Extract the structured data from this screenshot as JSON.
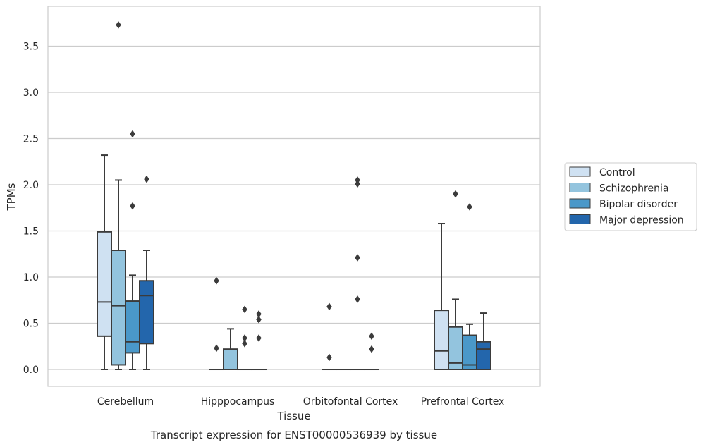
{
  "chart_data": {
    "type": "box",
    "title": "",
    "caption": "Transcript expression for ENST00000536939 by tissue",
    "xlabel": "Tissue",
    "ylabel": "TPMs",
    "ylim": [
      -0.18,
      3.9
    ],
    "yticks": [
      0.0,
      0.5,
      1.0,
      1.5,
      2.0,
      2.5,
      3.0,
      3.5
    ],
    "ytick_labels": [
      "0.0",
      "0.5",
      "1.0",
      "1.5",
      "2.0",
      "2.5",
      "3.0",
      "3.5"
    ],
    "grid": "horizontal",
    "legend_position": "right",
    "categories": [
      "Cerebellum",
      "Hipppocampus",
      "Orbitofontal Cortex",
      "Prefrontal Cortex"
    ],
    "series": [
      {
        "name": "Control",
        "color": "#cfe1f2",
        "boxes": [
          {
            "whisker_low": 0.0,
            "q1": 0.36,
            "median": 0.73,
            "q3": 1.49,
            "whisker_high": 2.32,
            "outliers": []
          },
          {
            "whisker_low": 0.0,
            "q1": 0.0,
            "median": 0.0,
            "q3": 0.0,
            "whisker_high": 0.0,
            "outliers": [
              0.96,
              0.23
            ]
          },
          {
            "whisker_low": 0.0,
            "q1": 0.0,
            "median": 0.0,
            "q3": 0.0,
            "whisker_high": 0.0,
            "outliers": [
              0.68,
              0.13
            ]
          },
          {
            "whisker_low": 0.0,
            "q1": 0.0,
            "median": 0.2,
            "q3": 0.64,
            "whisker_high": 1.58,
            "outliers": []
          }
        ]
      },
      {
        "name": "Schizophrenia",
        "color": "#93c4de",
        "boxes": [
          {
            "whisker_low": 0.0,
            "q1": 0.05,
            "median": 0.69,
            "q3": 1.29,
            "whisker_high": 2.05,
            "outliers": [
              3.73
            ]
          },
          {
            "whisker_low": 0.0,
            "q1": 0.0,
            "median": 0.0,
            "q3": 0.22,
            "whisker_high": 0.44,
            "outliers": []
          },
          {
            "whisker_low": 0.0,
            "q1": 0.0,
            "median": 0.0,
            "q3": 0.0,
            "whisker_high": 0.0,
            "outliers": []
          },
          {
            "whisker_low": 0.0,
            "q1": 0.0,
            "median": 0.07,
            "q3": 0.46,
            "whisker_high": 0.76,
            "outliers": [
              1.9
            ]
          }
        ]
      },
      {
        "name": "Bipolar disorder",
        "color": "#4a98c9",
        "boxes": [
          {
            "whisker_low": 0.0,
            "q1": 0.18,
            "median": 0.3,
            "q3": 0.74,
            "whisker_high": 1.02,
            "outliers": [
              2.55,
              1.77
            ]
          },
          {
            "whisker_low": 0.0,
            "q1": 0.0,
            "median": 0.0,
            "q3": 0.0,
            "whisker_high": 0.0,
            "outliers": [
              0.65,
              0.34,
              0.28
            ]
          },
          {
            "whisker_low": 0.0,
            "q1": 0.0,
            "median": 0.0,
            "q3": 0.0,
            "whisker_high": 0.0,
            "outliers": [
              2.05,
              2.01,
              1.21,
              0.76
            ]
          },
          {
            "whisker_low": 0.0,
            "q1": 0.0,
            "median": 0.05,
            "q3": 0.37,
            "whisker_high": 0.49,
            "outliers": [
              1.76
            ]
          }
        ]
      },
      {
        "name": "Major depression",
        "color": "#2366ac",
        "boxes": [
          {
            "whisker_low": 0.0,
            "q1": 0.28,
            "median": 0.8,
            "q3": 0.96,
            "whisker_high": 1.29,
            "outliers": [
              2.06
            ]
          },
          {
            "whisker_low": 0.0,
            "q1": 0.0,
            "median": 0.0,
            "q3": 0.0,
            "whisker_high": 0.0,
            "outliers": [
              0.6,
              0.54,
              0.34
            ]
          },
          {
            "whisker_low": 0.0,
            "q1": 0.0,
            "median": 0.0,
            "q3": 0.0,
            "whisker_high": 0.0,
            "outliers": [
              0.36,
              0.22
            ]
          },
          {
            "whisker_low": 0.0,
            "q1": 0.0,
            "median": 0.22,
            "q3": 0.3,
            "whisker_high": 0.61,
            "outliers": []
          }
        ]
      }
    ]
  }
}
